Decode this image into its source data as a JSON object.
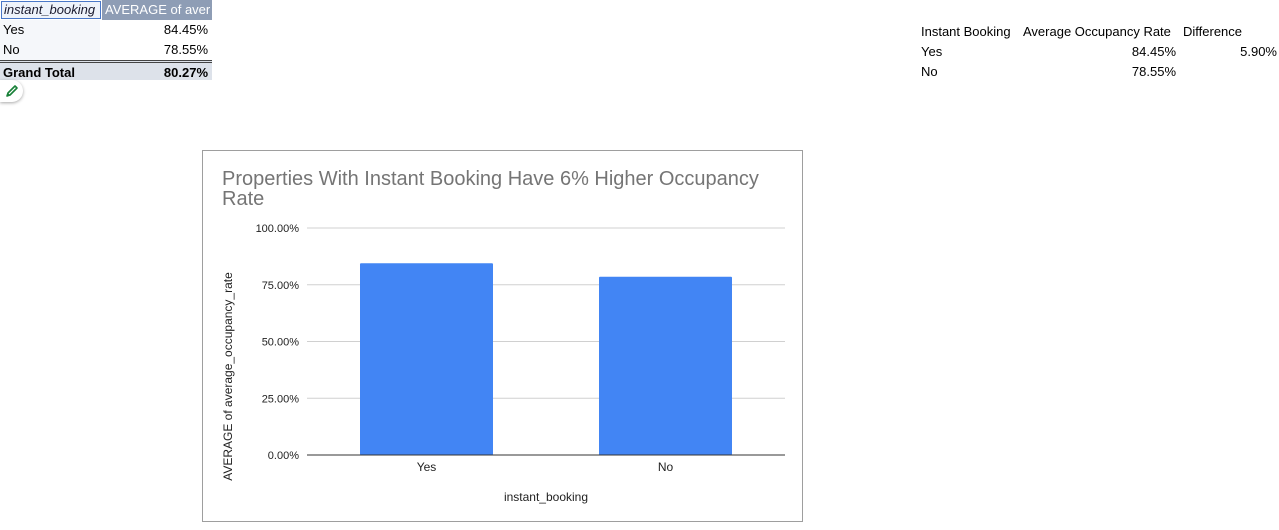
{
  "pivot": {
    "headers": [
      "instant_booking",
      "AVERAGE of aver"
    ],
    "rows": [
      {
        "label": "Yes",
        "value": "84.45%"
      },
      {
        "label": "No",
        "value": "78.55%"
      }
    ],
    "total": {
      "label": "Grand Total",
      "value": "80.27%"
    }
  },
  "edit_icon": "pencil-icon",
  "summary": {
    "headers": [
      "Instant Booking",
      "Average Occupancy Rate",
      "Difference"
    ],
    "rows": [
      {
        "label": "Yes",
        "rate": "84.45%",
        "diff": "5.90%"
      },
      {
        "label": "No",
        "rate": "78.55%",
        "diff": ""
      }
    ]
  },
  "chart_data": {
    "type": "bar",
    "title": "Properties With Instant Booking Have 6% Higher Occupancy Rate",
    "xlabel": "instant_booking",
    "ylabel": "AVERAGE of average_occupancy_rate",
    "categories": [
      "Yes",
      "No"
    ],
    "values": [
      84.45,
      78.55
    ],
    "ylim": [
      0,
      100
    ],
    "yticks": [
      "0.00%",
      "25.00%",
      "50.00%",
      "75.00%",
      "100.00%"
    ],
    "tick_values": [
      0,
      25,
      50,
      75,
      100
    ],
    "bar_color": "#4285f4",
    "grid": true,
    "legend": "none"
  }
}
